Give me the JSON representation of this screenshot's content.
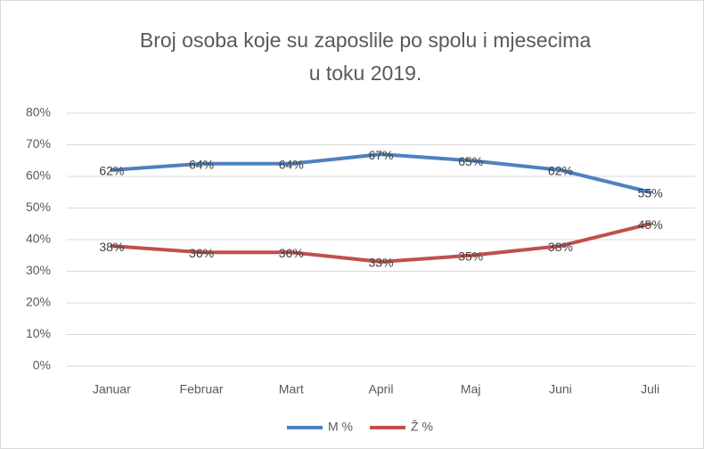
{
  "chart_data": {
    "type": "line",
    "title": [
      "Broj osoba koje su zaposlile po spolu i mjesecima",
      "u toku 2019."
    ],
    "categories": [
      "Januar",
      "Februar",
      "Mart",
      "April",
      "Maj",
      "Juni",
      "Juli"
    ],
    "series": [
      {
        "name": "M %",
        "color": "#4e81bd",
        "values": [
          62,
          64,
          64,
          67,
          65,
          62,
          55
        ],
        "value_labels": [
          "62%",
          "64%",
          "64%",
          "67%",
          "65%",
          "62%",
          "55%"
        ]
      },
      {
        "name": "Ž %",
        "color": "#c0504d",
        "values": [
          38,
          36,
          36,
          33,
          35,
          38,
          45
        ],
        "value_labels": [
          "38%",
          "36%",
          "36%",
          "33%",
          "35%",
          "38%",
          "45%"
        ]
      }
    ],
    "ylim": [
      0,
      80
    ],
    "yticks": [
      {
        "value": 0,
        "label": "0%"
      },
      {
        "value": 10,
        "label": "10%"
      },
      {
        "value": 20,
        "label": "20%"
      },
      {
        "value": 30,
        "label": "30%"
      },
      {
        "value": 40,
        "label": "40%"
      },
      {
        "value": 50,
        "label": "50%"
      },
      {
        "value": 60,
        "label": "60%"
      },
      {
        "value": 70,
        "label": "70%"
      },
      {
        "value": 80,
        "label": "80%"
      }
    ],
    "grid": true,
    "legend": "bottom"
  }
}
